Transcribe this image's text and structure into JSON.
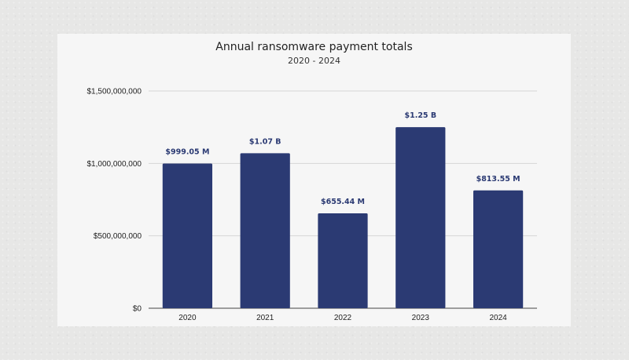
{
  "chart_data": {
    "type": "bar",
    "title": "Annual ransomware payment totals",
    "subtitle": "2020 - 2024",
    "categories": [
      "2020",
      "2021",
      "2022",
      "2023",
      "2024"
    ],
    "values": [
      999050000,
      1070000000,
      655440000,
      1250000000,
      813550000
    ],
    "data_labels": [
      "$999.05 M",
      "$1.07 B",
      "$655.44 M",
      "$1.25 B",
      "$813.55 M"
    ],
    "ylim": [
      0,
      1500000000
    ],
    "yticks": [
      0,
      500000000,
      1000000000,
      1500000000
    ],
    "ytick_labels": [
      "$0",
      "$500,000,000",
      "$1,000,000,000",
      "$1,500,000,000"
    ],
    "xlabel": "",
    "ylabel": "",
    "grid": true,
    "legend": "none",
    "bar_color": "#2b3a73"
  }
}
